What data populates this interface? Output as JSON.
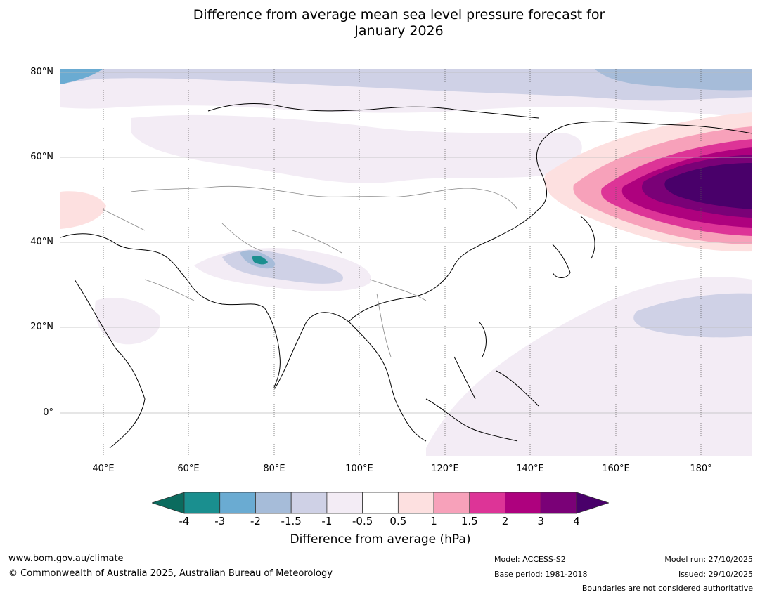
{
  "title_line1": "Difference from average mean sea level pressure forecast for",
  "title_line2": "January 2026",
  "map": {
    "projection": "equirectangular",
    "lon_range": [
      30,
      192
    ],
    "lat_range": [
      -10,
      81
    ],
    "lat_labels": [
      "80°N",
      "60°N",
      "40°N",
      "20°N",
      "0°"
    ],
    "lon_labels": [
      "40°E",
      "60°E",
      "80°E",
      "100°E",
      "120°E",
      "140°E",
      "160°E",
      "180°"
    ],
    "features": {
      "high_anomaly": "Strong positive anomaly centred near 52°N 180°",
      "low_anomaly": "Negative anomaly over Tibetan Plateau and Arctic"
    }
  },
  "colorbar": {
    "title": "Difference from average (hPa)",
    "ticks": [
      "-4",
      "-3",
      "-2",
      "-1.5",
      "-1",
      "-0.5",
      "0.5",
      "1",
      "1.5",
      "2",
      "3",
      "4"
    ],
    "colors": [
      "#1a8f8f",
      "#6aabd2",
      "#a6bcd9",
      "#cfd1e6",
      "#f3ecf5",
      "#ffffff",
      "#fde0e0",
      "#f7a1ba",
      "#dd3497",
      "#ae017e",
      "#7a0177",
      "#49006a"
    ],
    "low_extend_color": "#0b6b5e",
    "high_extend_color": "#49006a"
  },
  "footer": {
    "website": "www.bom.gov.au/climate",
    "copyright": "© Commonwealth of Australia 2025, Australian Bureau of Meteorology",
    "model": "Model: ACCESS-S2",
    "base_period": "Base period: 1981-2018",
    "model_run": "Model run: 27/10/2025",
    "issued": "Issued: 29/10/2025",
    "disclaimer": "Boundaries are not considered authoritative"
  }
}
